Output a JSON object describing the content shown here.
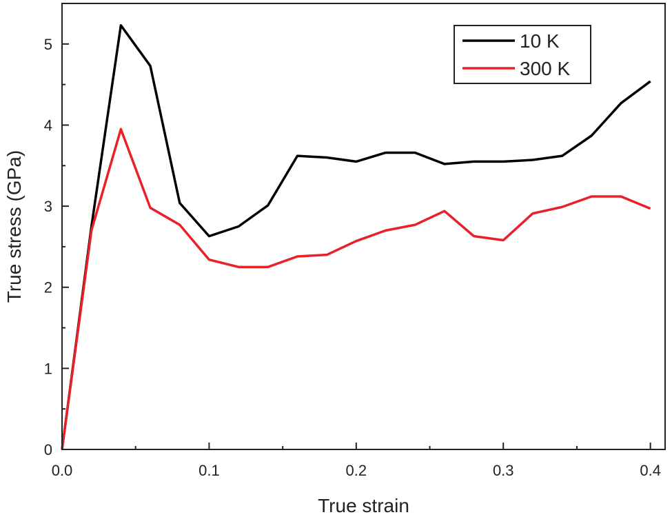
{
  "chart_data": {
    "type": "line",
    "title": "",
    "xlabel": "True strain",
    "ylabel": "True stress (GPa)",
    "xlim": [
      0,
      0.41
    ],
    "ylim": [
      0,
      5.5
    ],
    "xticks": [
      0.0,
      0.1,
      0.2,
      0.3,
      0.4
    ],
    "xtick_labels": [
      "0.0",
      "0.1",
      "0.2",
      "0.3",
      "0.4"
    ],
    "yticks": [
      0,
      1,
      2,
      3,
      4,
      5
    ],
    "ytick_labels": [
      "0",
      "1",
      "2",
      "3",
      "4",
      "5"
    ],
    "grid": false,
    "legend_position": "top-right",
    "x": [
      0,
      0.02,
      0.04,
      0.06,
      0.08,
      0.1,
      0.12,
      0.14,
      0.16,
      0.18,
      0.2,
      0.22,
      0.24,
      0.26,
      0.28,
      0.3,
      0.32,
      0.34,
      0.36,
      0.38,
      0.4
    ],
    "series": [
      {
        "name": "10 K",
        "color": "#000000",
        "values": [
          0,
          2.75,
          5.23,
          4.73,
          3.04,
          2.63,
          2.75,
          3.01,
          3.62,
          3.6,
          3.55,
          3.66,
          3.66,
          3.52,
          3.55,
          3.55,
          3.57,
          3.62,
          3.87,
          4.27,
          4.54
        ]
      },
      {
        "name": "300 K",
        "color": "#e8202a",
        "values": [
          0,
          2.7,
          3.95,
          2.98,
          2.77,
          2.34,
          2.25,
          2.25,
          2.38,
          2.4,
          2.57,
          2.7,
          2.77,
          2.94,
          2.63,
          2.58,
          2.91,
          2.99,
          3.12,
          3.12,
          2.97
        ]
      }
    ]
  }
}
